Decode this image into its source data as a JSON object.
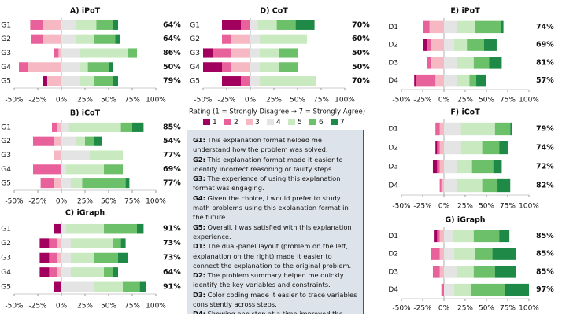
{
  "legend": {
    "title": "Rating (1 = Strongly Disagree → 7 = Strongly Agree)",
    "items": [
      {
        "name": "1",
        "color": "#a2005f"
      },
      {
        "name": "2",
        "color": "#e8619a"
      },
      {
        "name": "3",
        "color": "#f6b8c2"
      },
      {
        "name": "4",
        "color": "#e4e4e4"
      },
      {
        "name": "5",
        "color": "#c9eac0"
      },
      {
        "name": "6",
        "color": "#6dc06a"
      },
      {
        "name": "7",
        "color": "#1f8a47"
      }
    ]
  },
  "notes": [
    {
      "key": "G1:",
      "text": "This explanation format helped me understand how the problem was solved."
    },
    {
      "key": "G2:",
      "text": "This explanation format made it easier to identify incorrect reasoning or faulty steps."
    },
    {
      "key": "G3:",
      "text": "The experience of using this explanation format was engaging."
    },
    {
      "key": "G4:",
      "text": "Given the choice, I would prefer to study math problems using this explanation format in the future."
    },
    {
      "key": "G5:",
      "text": "Overall, I was satisfied with this explanation experience."
    },
    {
      "key": "D1:",
      "text": "The dual-panel layout (problem on the left, explanation on the right) made it easier to connect the explanation to the original problem."
    },
    {
      "key": "D2:",
      "text": "The problem summary helped me quickly identify the key variables and constraints."
    },
    {
      "key": "D3:",
      "text": "Color coding made it easier to trace variables consistently across steps."
    },
    {
      "key": "D4:",
      "text": "Showing one step at a time improved the clarity of the explanation."
    }
  ],
  "chart_data": [
    {
      "type": "bar",
      "title": "A) iPoT",
      "categories": [
        "G1",
        "G2",
        "G3",
        "G4",
        "G5"
      ],
      "series": [
        {
          "values": [
            0,
            0,
            0,
            0,
            5
          ]
        },
        {
          "values": [
            13,
            12,
            5,
            10,
            0
          ]
        },
        {
          "values": [
            20,
            20,
            3,
            35,
            15
          ]
        },
        {
          "values": [
            15,
            15,
            20,
            20,
            20
          ]
        },
        {
          "values": [
            22,
            20,
            50,
            8,
            15
          ]
        },
        {
          "values": [
            18,
            22,
            10,
            22,
            20
          ]
        },
        {
          "values": [
            5,
            5,
            0,
            5,
            5
          ]
        }
      ],
      "labels": [
        "64%",
        "64%",
        "86%",
        "50%",
        "79%"
      ],
      "xlim": [
        -50,
        100
      ],
      "xticks": [
        {
          "value": -50,
          "label": "-50%"
        },
        {
          "value": -25,
          "label": "-25%"
        },
        {
          "value": 0,
          "label": "0%"
        },
        {
          "value": 25,
          "label": "25%"
        },
        {
          "value": 50,
          "label": "50%"
        },
        {
          "value": 75,
          "label": "75%"
        },
        {
          "value": 100,
          "label": "100%"
        }
      ]
    },
    {
      "type": "bar",
      "title": "B) iCoT",
      "categories": [
        "G1",
        "G2",
        "G3",
        "G4",
        "G5"
      ],
      "series": [
        {
          "values": [
            0,
            0,
            0,
            0,
            0
          ]
        },
        {
          "values": [
            5,
            22,
            0,
            30,
            14
          ]
        },
        {
          "values": [
            5,
            8,
            8,
            0,
            8
          ]
        },
        {
          "values": [
            8,
            15,
            30,
            5,
            10
          ]
        },
        {
          "values": [
            55,
            10,
            35,
            40,
            12
          ]
        },
        {
          "values": [
            12,
            10,
            0,
            20,
            46
          ]
        },
        {
          "values": [
            12,
            8,
            0,
            0,
            4
          ]
        }
      ],
      "labels": [
        "85%",
        "54%",
        "77%",
        "69%",
        "77%"
      ],
      "xlim": [
        -50,
        100
      ],
      "xticks": [
        {
          "value": -50,
          "label": "-50%"
        },
        {
          "value": -25,
          "label": "-25%"
        },
        {
          "value": 0,
          "label": "0%"
        },
        {
          "value": 25,
          "label": "25%"
        },
        {
          "value": 50,
          "label": "50%"
        },
        {
          "value": 75,
          "label": "75%"
        },
        {
          "value": 100,
          "label": "100%"
        }
      ]
    },
    {
      "type": "bar",
      "title": "C) iGraph",
      "categories": [
        "G1",
        "G2",
        "G3",
        "G4",
        "G5"
      ],
      "series": [
        {
          "values": [
            8,
            10,
            10,
            10,
            8
          ]
        },
        {
          "values": [
            0,
            8,
            8,
            8,
            0
          ]
        },
        {
          "values": [
            0,
            5,
            5,
            5,
            0
          ]
        },
        {
          "values": [
            5,
            10,
            10,
            10,
            35
          ]
        },
        {
          "values": [
            40,
            45,
            25,
            35,
            30
          ]
        },
        {
          "values": [
            35,
            8,
            25,
            10,
            18
          ]
        },
        {
          "values": [
            7,
            5,
            10,
            5,
            7
          ]
        }
      ],
      "labels": [
        "91%",
        "73%",
        "73%",
        "64%",
        "91%"
      ],
      "xlim": [
        -50,
        100
      ],
      "xticks": [
        {
          "value": -50,
          "label": "-50%"
        },
        {
          "value": -25,
          "label": "-25%"
        },
        {
          "value": 0,
          "label": "0%"
        },
        {
          "value": 25,
          "label": "25%"
        },
        {
          "value": 50,
          "label": "50%"
        },
        {
          "value": 75,
          "label": "75%"
        },
        {
          "value": 100,
          "label": "100%"
        }
      ]
    },
    {
      "type": "bar",
      "title": "D)  CoT",
      "categories": [
        "G1",
        "G2",
        "G3",
        "G4",
        "G5"
      ],
      "series": [
        {
          "values": [
            20,
            0,
            10,
            20,
            20
          ]
        },
        {
          "values": [
            10,
            10,
            20,
            10,
            10
          ]
        },
        {
          "values": [
            0,
            20,
            20,
            20,
            0
          ]
        },
        {
          "values": [
            8,
            10,
            10,
            10,
            10
          ]
        },
        {
          "values": [
            20,
            50,
            20,
            20,
            60
          ]
        },
        {
          "values": [
            20,
            0,
            20,
            20,
            0
          ]
        },
        {
          "values": [
            20,
            0,
            0,
            0,
            0
          ]
        }
      ],
      "labels": [
        "70%",
        "60%",
        "50%",
        "50%",
        "70%"
      ],
      "xlim": [
        -50,
        100
      ],
      "xticks": [
        {
          "value": -50,
          "label": "-50%"
        },
        {
          "value": -25,
          "label": "-25%"
        },
        {
          "value": 0,
          "label": "0%"
        },
        {
          "value": 25,
          "label": "25%"
        },
        {
          "value": 50,
          "label": "50%"
        },
        {
          "value": 75,
          "label": "75%"
        },
        {
          "value": 100,
          "label": "100%"
        }
      ]
    },
    {
      "type": "bar",
      "title": "E)  iPoT",
      "categories": [
        "D1",
        "D2",
        "D3",
        "D4"
      ],
      "series": [
        {
          "values": [
            0,
            5,
            0,
            2
          ]
        },
        {
          "values": [
            8,
            5,
            5,
            23
          ]
        },
        {
          "values": [
            17,
            15,
            15,
            10
          ]
        },
        {
          "values": [
            15,
            12,
            15,
            15
          ]
        },
        {
          "values": [
            22,
            15,
            20,
            15
          ]
        },
        {
          "values": [
            30,
            20,
            18,
            8
          ]
        },
        {
          "values": [
            3,
            15,
            15,
            12
          ]
        }
      ],
      "labels": [
        "74%",
        "69%",
        "81%",
        "57%"
      ],
      "xlim": [
        -50,
        100
      ],
      "xticks": [
        {
          "value": -50,
          "label": "-50%"
        },
        {
          "value": -25,
          "label": "-25%"
        },
        {
          "value": 0,
          "label": "0%"
        },
        {
          "value": 25,
          "label": "25%"
        },
        {
          "value": 50,
          "label": "50%"
        },
        {
          "value": 75,
          "label": "75%"
        },
        {
          "value": 100,
          "label": "100%"
        }
      ]
    },
    {
      "type": "bar",
      "title": "F) iCoT",
      "categories": [
        "D1",
        "D2",
        "D3",
        "D4"
      ],
      "series": [
        {
          "values": [
            0,
            2,
            5,
            0
          ]
        },
        {
          "values": [
            5,
            3,
            3,
            2
          ]
        },
        {
          "values": [
            5,
            5,
            5,
            3
          ]
        },
        {
          "values": [
            20,
            20,
            15,
            15
          ]
        },
        {
          "values": [
            40,
            25,
            18,
            30
          ]
        },
        {
          "values": [
            18,
            20,
            25,
            18
          ]
        },
        {
          "values": [
            2,
            10,
            10,
            15
          ]
        }
      ],
      "labels": [
        "79%",
        "74%",
        "72%",
        "82%"
      ],
      "xlim": [
        -50,
        100
      ],
      "xticks": [
        {
          "value": -50,
          "label": "-50%"
        },
        {
          "value": -25,
          "label": "-25%"
        },
        {
          "value": 0,
          "label": "0%"
        },
        {
          "value": 25,
          "label": "25%"
        },
        {
          "value": 50,
          "label": "50%"
        },
        {
          "value": 75,
          "label": "75%"
        },
        {
          "value": 100,
          "label": "100%"
        }
      ]
    },
    {
      "type": "bar",
      "title": "G) iGraph",
      "categories": [
        "D1",
        "D2",
        "D3",
        "D4"
      ],
      "series": [
        {
          "values": [
            3,
            0,
            0,
            0
          ]
        },
        {
          "values": [
            3,
            10,
            8,
            3
          ]
        },
        {
          "values": [
            5,
            5,
            5,
            0
          ]
        },
        {
          "values": [
            10,
            12,
            15,
            12
          ]
        },
        {
          "values": [
            25,
            25,
            20,
            20
          ]
        },
        {
          "values": [
            30,
            20,
            25,
            40
          ]
        },
        {
          "values": [
            12,
            28,
            25,
            28
          ]
        }
      ],
      "labels": [
        "85%",
        "85%",
        "85%",
        "97%"
      ],
      "xlim": [
        -50,
        100
      ],
      "xticks": [
        {
          "value": -50,
          "label": "-50%"
        },
        {
          "value": -25,
          "label": "-25%"
        },
        {
          "value": 0,
          "label": "0%"
        },
        {
          "value": 25,
          "label": "25%"
        },
        {
          "value": 50,
          "label": "50%"
        },
        {
          "value": 75,
          "label": "75%"
        },
        {
          "value": 100,
          "label": "100%"
        }
      ]
    }
  ]
}
